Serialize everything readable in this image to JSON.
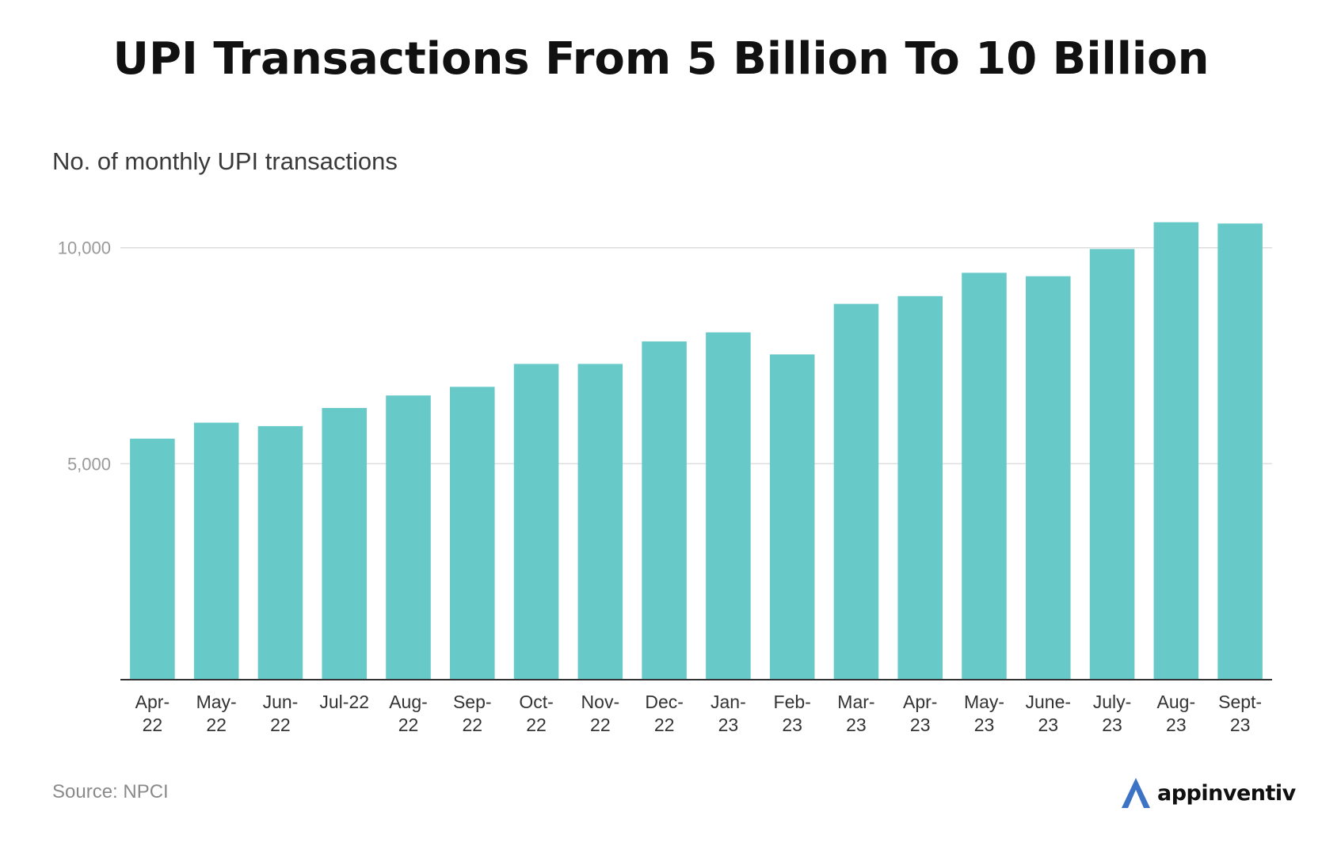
{
  "header": {
    "title": "UPI Transactions From 5 Billion To 10 Billion",
    "subtitle": "No. of monthly UPI transactions"
  },
  "footer": {
    "source": "Source: NPCI",
    "brand": "appinventiv",
    "brand_icon": "appinventiv-logo-icon"
  },
  "colors": {
    "bar": "#68c9c9",
    "grid": "#dddddd",
    "axis": "#333333",
    "tick_text": "#9a9a9a",
    "category_text": "#333333",
    "brand_blue": "#3d73c4"
  },
  "chart_data": {
    "type": "bar",
    "categories": [
      [
        "Apr-",
        "22"
      ],
      [
        "May-",
        "22"
      ],
      [
        "Jun-",
        "22"
      ],
      [
        "Jul-22"
      ],
      [
        "Aug-",
        "22"
      ],
      [
        "Sep-",
        "22"
      ],
      [
        "Oct-",
        "22"
      ],
      [
        "Nov-",
        "22"
      ],
      [
        "Dec-",
        "22"
      ],
      [
        "Jan-",
        "23"
      ],
      [
        "Feb-",
        "23"
      ],
      [
        "Mar-",
        "23"
      ],
      [
        "Apr-",
        "23"
      ],
      [
        "May-",
        "23"
      ],
      [
        "June-",
        "23"
      ],
      [
        "July-",
        "23"
      ],
      [
        "Aug-",
        "23"
      ],
      [
        "Sept-",
        "23"
      ]
    ],
    "values": [
      5580,
      5950,
      5870,
      6290,
      6580,
      6780,
      7310,
      7310,
      7830,
      8040,
      7530,
      8700,
      8880,
      9420,
      9340,
      9970,
      10590,
      10560
    ],
    "ylim": [
      0,
      10600
    ],
    "yticks": [
      5000,
      10000
    ],
    "ytick_labels": [
      "5,000",
      "10,000"
    ],
    "grid": true,
    "legend": "none"
  }
}
